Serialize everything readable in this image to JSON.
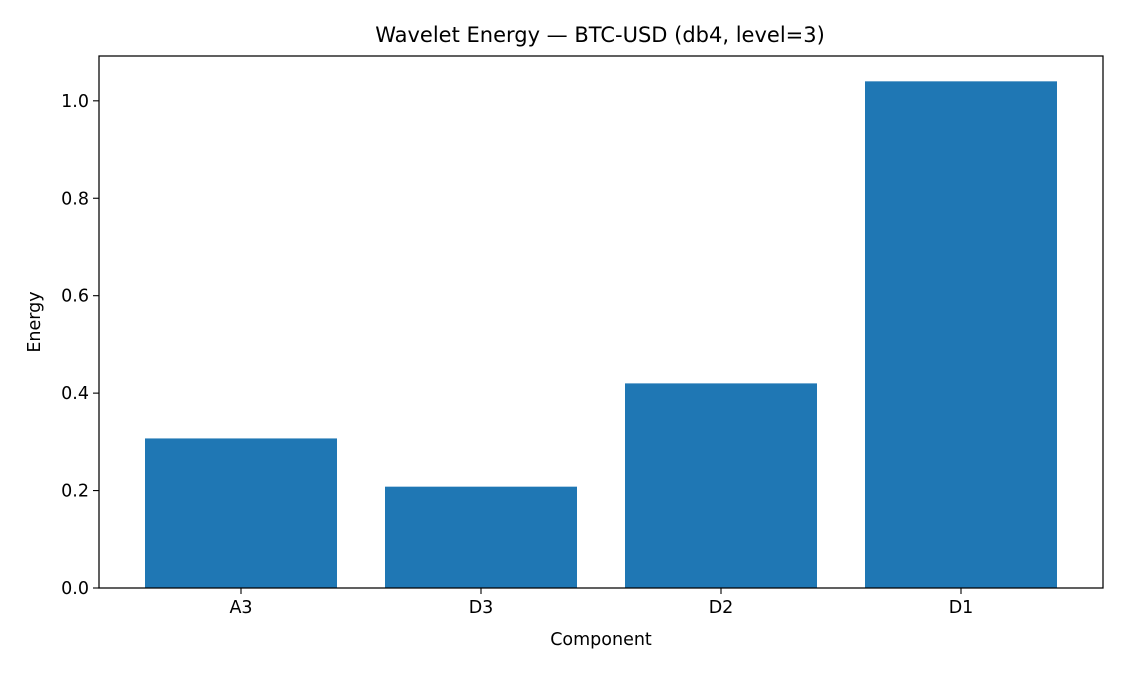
{
  "chart_data": {
    "type": "bar",
    "title": "Wavelet Energy — BTC-USD (db4, level=3)",
    "xlabel": "Component",
    "ylabel": "Energy",
    "categories": [
      "A3",
      "D3",
      "D2",
      "D1"
    ],
    "values": [
      0.307,
      0.208,
      0.42,
      1.04
    ],
    "ylim": [
      0,
      1.092
    ],
    "yticks": [
      0.0,
      0.2,
      0.4,
      0.6,
      0.8,
      1.0
    ],
    "ytick_labels": [
      "0.0",
      "0.2",
      "0.4",
      "0.6",
      "0.8",
      "1.0"
    ],
    "bar_color": "#1f77b4",
    "grid": false,
    "legend": "none"
  }
}
